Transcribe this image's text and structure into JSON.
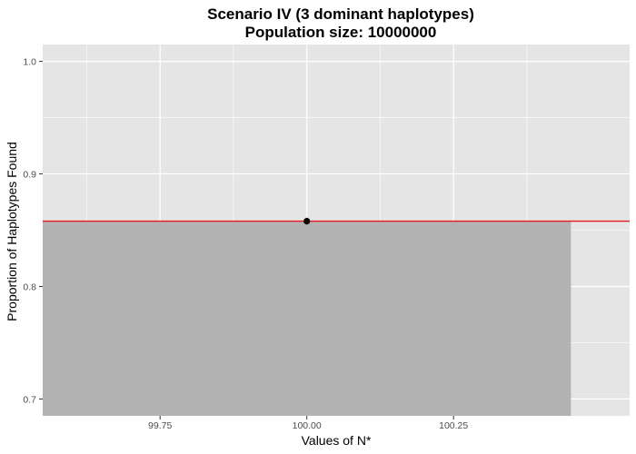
{
  "chart_data": {
    "type": "bar",
    "title": "Scenario IV (3 dominant haplotypes)",
    "subtitle": "Population size: 10000000",
    "xlabel": "Values of N*",
    "ylabel": "Proportion of Haplotypes Found",
    "xlim": [
      99.55,
      100.55
    ],
    "ylim": [
      0.685,
      1.015
    ],
    "x_ticks": [
      99.75,
      100.0,
      100.25
    ],
    "x_tick_labels": [
      "99.75",
      "100.00",
      "100.25"
    ],
    "y_ticks": [
      0.7,
      0.8,
      0.9,
      1.0
    ],
    "y_tick_labels": [
      "0.7",
      "0.8",
      "0.9",
      "1.0"
    ],
    "bars": [
      {
        "x": 100.0,
        "value": 0.858,
        "width": 0.9
      }
    ],
    "points": [
      {
        "x": 100.0,
        "y": 0.858,
        "error": 0.003
      }
    ],
    "reference_line": {
      "y": 0.858,
      "color": "#e41a1c"
    },
    "grid": true,
    "colors": {
      "panel_background": "#e5e5e5",
      "grid_line": "#ffffff",
      "bar_fill": "#b3b3b3",
      "point": "#000000",
      "reference_line": "#e41a1c"
    }
  }
}
